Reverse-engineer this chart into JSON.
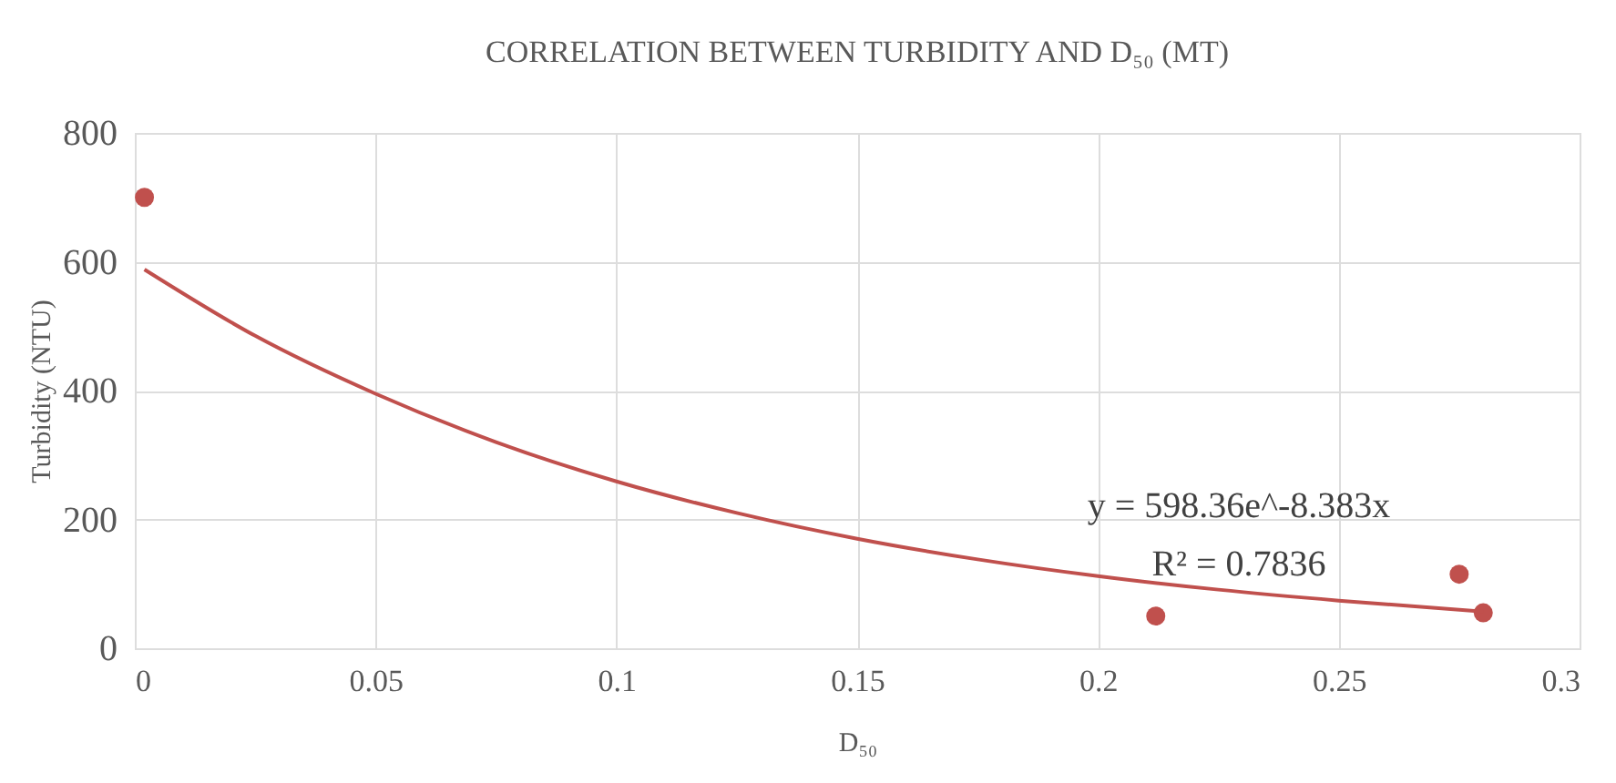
{
  "chart_data": {
    "type": "scatter",
    "title": "CORRELATION BETWEEN TURBIDITY AND D₅₀ (MT)",
    "xlabel": "D₅₀",
    "ylabel": "Turbidity (NTU)",
    "series": [
      {
        "type": "scatter",
        "color": "#c0504d",
        "x": [
          0.002,
          0.212,
          0.275,
          0.28
        ],
        "values": [
          700,
          50,
          115,
          55
        ]
      },
      {
        "type": "line",
        "marker": "none",
        "color": "#c0504d",
        "x": [
          0.002,
          0.025,
          0.05,
          0.075,
          0.1,
          0.125,
          0.15,
          0.175,
          0.2,
          0.225,
          0.25,
          0.28
        ],
        "values": [
          588,
          485,
          395,
          320,
          259,
          210,
          170,
          138,
          112,
          91,
          74,
          57
        ]
      }
    ],
    "annotations": [
      "y = 598.36e^-8.383x",
      "R² = 0.7836"
    ],
    "xlim": [
      0,
      0.3
    ],
    "xticks": [
      0,
      0.05,
      0.1,
      0.15,
      0.2,
      0.25,
      0.3
    ],
    "ylim": [
      0,
      800
    ],
    "yticks": [
      0,
      200,
      400,
      600,
      800
    ],
    "grid": true,
    "marker": "circle",
    "line_style": "solid",
    "legend": false
  }
}
